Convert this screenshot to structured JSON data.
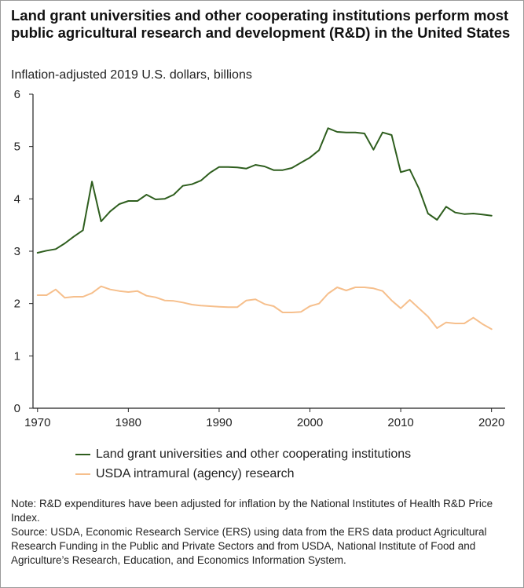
{
  "title": "Land grant universities and other cooperating institutions perform most public agricultural research and development (R&D) in the United States",
  "subtitle": "Inflation-adjusted 2019 U.S. dollars, billions",
  "note": "Note: R&D expenditures have been adjusted for inflation by the National Institutes of Health R&D Price Index.",
  "source": "Source: USDA, Economic Research Service (ERS) using data from the ERS data product Agricultural Research Funding in the Public and Private Sectors and from USDA, National Institute of Food and Agriculture’s Research, Education, and Economics Information System.",
  "chart_data": {
    "type": "line",
    "title": "Land grant universities and other cooperating institutions perform most public agricultural research and development (R&D) in the United States",
    "subtitle": "Inflation-adjusted 2019 U.S. dollars, billions",
    "xlabel": "",
    "ylabel": "",
    "xlim": [
      1969.5,
      2021.5
    ],
    "ylim": [
      0,
      6
    ],
    "xticks": [
      1970,
      1980,
      1990,
      2000,
      2010,
      2020
    ],
    "yticks": [
      0,
      1,
      2,
      3,
      4,
      5,
      6
    ],
    "grid": false,
    "legend_position": "bottom-left",
    "x": [
      1970,
      1971,
      1972,
      1973,
      1974,
      1975,
      1976,
      1977,
      1978,
      1979,
      1980,
      1981,
      1982,
      1983,
      1984,
      1985,
      1986,
      1987,
      1988,
      1989,
      1990,
      1991,
      1992,
      1993,
      1994,
      1995,
      1996,
      1997,
      1998,
      1999,
      2000,
      2001,
      2002,
      2003,
      2004,
      2005,
      2006,
      2007,
      2008,
      2009,
      2010,
      2011,
      2012,
      2013,
      2014,
      2015,
      2016,
      2017,
      2018,
      2019,
      2020
    ],
    "series": [
      {
        "name": "Land grant universities and other cooperating institutions",
        "color": "#2e5e1e",
        "values": [
          2.97,
          3.01,
          3.04,
          3.15,
          3.28,
          3.4,
          4.33,
          3.57,
          3.76,
          3.9,
          3.96,
          3.96,
          4.08,
          3.99,
          4.0,
          4.08,
          4.25,
          4.28,
          4.35,
          4.5,
          4.61,
          4.61,
          4.6,
          4.58,
          4.65,
          4.62,
          4.55,
          4.55,
          4.59,
          4.69,
          4.79,
          4.93,
          5.35,
          5.28,
          5.27,
          5.27,
          5.25,
          4.94,
          5.27,
          5.22,
          4.51,
          4.56,
          4.2,
          3.72,
          3.6,
          3.85,
          3.74,
          3.71,
          3.72,
          3.7,
          3.68
        ]
      },
      {
        "name": "USDA intramural (agency) research",
        "color": "#f6bf8c",
        "values": [
          2.16,
          2.16,
          2.27,
          2.11,
          2.13,
          2.13,
          2.2,
          2.33,
          2.27,
          2.24,
          2.22,
          2.24,
          2.15,
          2.12,
          2.06,
          2.05,
          2.02,
          1.98,
          1.96,
          1.95,
          1.94,
          1.93,
          1.93,
          2.06,
          2.08,
          1.99,
          1.95,
          1.83,
          1.83,
          1.84,
          1.95,
          2.0,
          2.19,
          2.31,
          2.25,
          2.31,
          2.31,
          2.29,
          2.24,
          2.06,
          1.91,
          2.07,
          1.91,
          1.75,
          1.53,
          1.64,
          1.62,
          1.62,
          1.73,
          1.61,
          1.51
        ]
      }
    ]
  }
}
